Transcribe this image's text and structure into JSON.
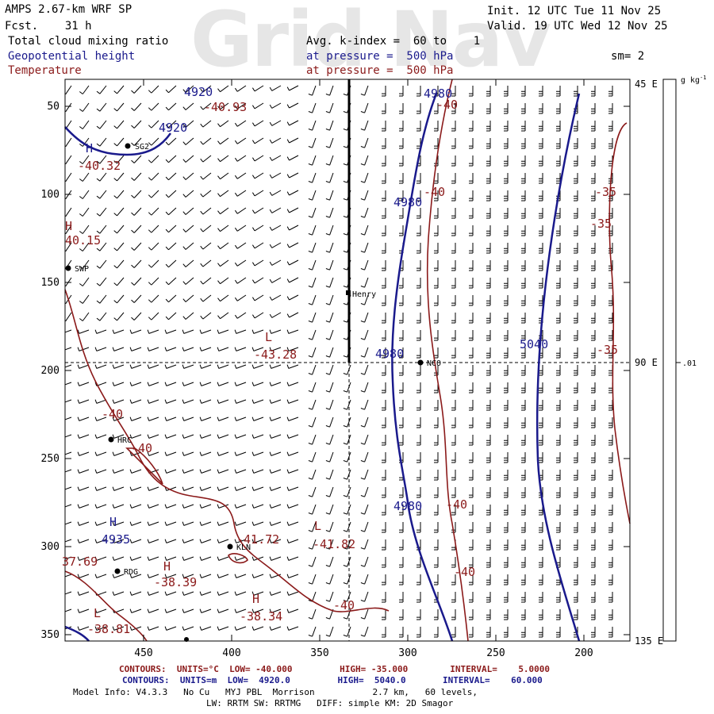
{
  "watermark": "Grid Nav",
  "header": {
    "model": "AMPS 2.67-km WRF SP",
    "fcst": "Fcst.    31 h",
    "field1": "Total cloud mixing ratio",
    "field2": "Geopotential height",
    "field3": "Temperature",
    "avg": "Avg. k-index =  60 to    1",
    "pressure1": "at pressure =  500 hPa",
    "pressure2": "at pressure =  500 hPa",
    "init": "Init. 12 UTC Tue 11 Nov 25",
    "valid": "Valid. 19 UTC Wed 12 Nov 25",
    "sm": "sm= 2"
  },
  "axes": {
    "x_ticks": [
      "450",
      "400",
      "350",
      "300",
      "250",
      "200"
    ],
    "y_ticks": [
      "50",
      "100",
      "150",
      "200",
      "250",
      "300",
      "350"
    ],
    "right_labels": [
      "45 E",
      "90 E",
      "135 E"
    ],
    "colorbar_unit": "g kg",
    "colorbar_unit_sup": "-1",
    "colorbar_value": ".01"
  },
  "stations": [
    {
      "name": "SG2"
    },
    {
      "name": "SWP"
    },
    {
      "name": "Henry"
    },
    {
      "name": "NCO"
    },
    {
      "name": "HRC"
    },
    {
      "name": "KLN"
    },
    {
      "name": "RDG"
    }
  ],
  "height_labels": [
    "4920",
    "4920",
    "4980",
    "4980",
    "4980",
    "4980",
    "5040",
    "4935",
    "H",
    "H"
  ],
  "temp_labels": [
    "-40.93",
    "-40.32",
    "40.15",
    "-43.28",
    "-40",
    "-40",
    "-40",
    "-40",
    "-40",
    "-40",
    "-40",
    "-35",
    "-35",
    "-35",
    "-41.72",
    "-41.82",
    "-38.39",
    "-38.34",
    "37.69",
    "-38.81",
    "L",
    "L",
    "H",
    "H",
    "H",
    "L"
  ],
  "footer": {
    "line1": "CONTOURS:  UNITS=°C  LOW= -40.000         HIGH= -35.000        INTERVAL=    5.0000",
    "line2": "CONTOURS:  UNITS=m  LOW=  4920.0         HIGH=  5040.0       INTERVAL=    60.000",
    "line3": "Model Info: V4.3.3   No Cu   MYJ PBL  Morrison           2.7 km,   60 levels,",
    "line4": "LW: RRTM SW: RRTMG   DIFF: simple KM: 2D Smagor"
  },
  "colors": {
    "height": "#1a1a8c",
    "temperature": "#8b1a1a"
  }
}
